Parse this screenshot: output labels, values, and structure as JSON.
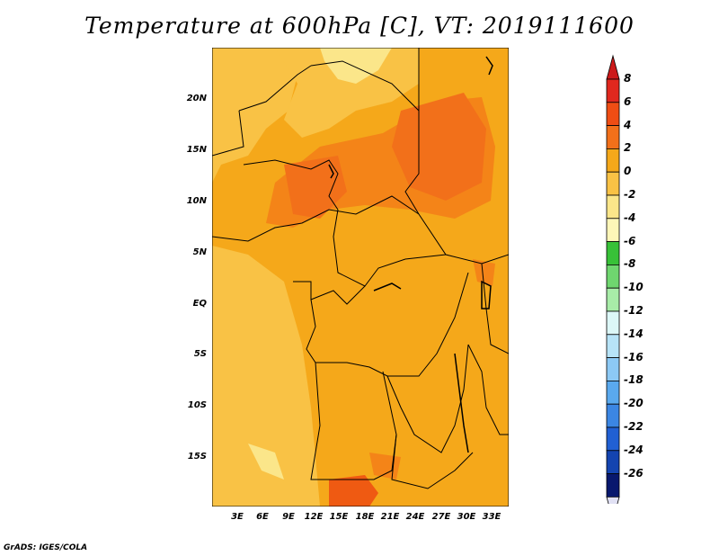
{
  "title": "Temperature at 600hPa [C], VT: 2019111600",
  "footer": "GrADS: IGES/COLA",
  "map": {
    "lat_labels": [
      "20N",
      "15N",
      "10N",
      "5N",
      "EQ",
      "5S",
      "10S",
      "15S"
    ],
    "lon_labels": [
      "3E",
      "6E",
      "9E",
      "12E",
      "15E",
      "18E",
      "21E",
      "24E",
      "27E",
      "30E",
      "33E"
    ],
    "colors": {
      "background": "#f5a81a",
      "light": "#f9c245",
      "warm": "#f48418",
      "hot": "#ef5a12",
      "pale": "#fbe68a"
    }
  },
  "colorbar": {
    "labels": [
      "8",
      "6",
      "4",
      "2",
      "0",
      "-2",
      "-4",
      "-6",
      "-8",
      "-10",
      "-12",
      "-14",
      "-16",
      "-18",
      "-20",
      "-22",
      "-24",
      "-26"
    ],
    "colors": [
      "#e0281e",
      "#ef4d14",
      "#f2701a",
      "#f5a81a",
      "#f9c245",
      "#fbe68a",
      "#fdf6b8",
      "#38c138",
      "#6fd66f",
      "#a8eca8",
      "#dcf7f7",
      "#b7e3f7",
      "#8cc9f5",
      "#5aa9ee",
      "#3b86e3",
      "#2160d3",
      "#1444b0",
      "#08186e"
    ],
    "top_arrow_color": "#cc1a1a",
    "bottom_arrow_color": "#e1e1f4"
  }
}
